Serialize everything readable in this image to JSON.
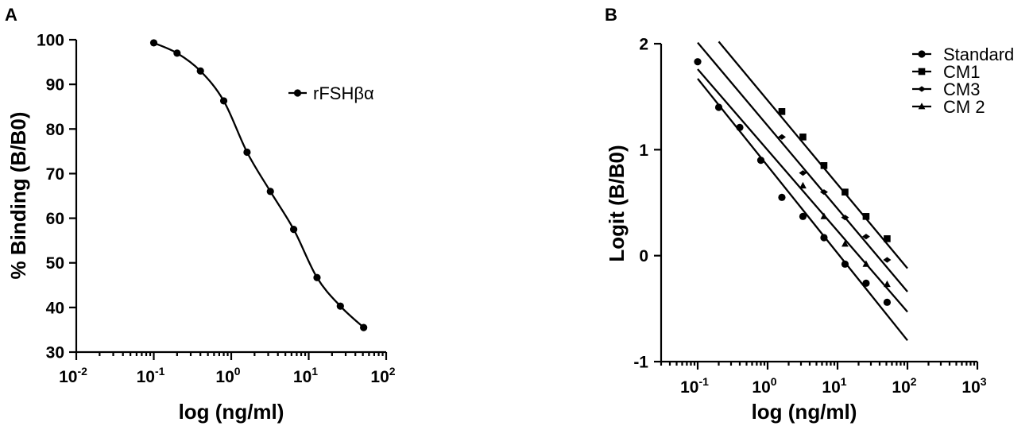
{
  "chart_data": [
    {
      "panel": "A",
      "type": "scatter",
      "xlabel": "log (ng/ml)",
      "ylabel": "% Binding (B/B0)",
      "xscale": "log",
      "xlim": [
        0.01,
        100
      ],
      "ylim": [
        30,
        100
      ],
      "x_ticks": [
        {
          "base": "10",
          "exp": "-2",
          "value": 0.01
        },
        {
          "base": "10",
          "exp": "-1",
          "value": 0.1
        },
        {
          "base": "10",
          "exp": "0",
          "value": 1
        },
        {
          "base": "10",
          "exp": "1",
          "value": 10
        },
        {
          "base": "10",
          "exp": "2",
          "value": 100
        }
      ],
      "y_ticks": [
        "30",
        "40",
        "50",
        "60",
        "70",
        "80",
        "90",
        "100"
      ],
      "legend_position": "top-right",
      "series": [
        {
          "name": "rFSHβα",
          "marker": "circle",
          "fit": "sigmoid",
          "x": [
            0.1,
            0.2,
            0.4,
            0.8,
            1.6,
            3.2,
            6.4,
            12.8,
            25.6,
            51.2
          ],
          "y": [
            99.3,
            97.0,
            93.0,
            86.3,
            74.8,
            66.0,
            57.5,
            46.7,
            40.3,
            35.5
          ]
        }
      ]
    },
    {
      "panel": "B",
      "type": "scatter",
      "xlabel": "log (ng/ml)",
      "ylabel": "Logit (B/B0)",
      "xscale": "log",
      "xlim": [
        0.03,
        1000
      ],
      "ylim": [
        -1,
        2
      ],
      "x_ticks": [
        {
          "base": "10",
          "exp": "-1",
          "value": 0.1
        },
        {
          "base": "10",
          "exp": "0",
          "value": 1
        },
        {
          "base": "10",
          "exp": "1",
          "value": 10
        },
        {
          "base": "10",
          "exp": "2",
          "value": 100
        },
        {
          "base": "10",
          "exp": "3",
          "value": 1000
        }
      ],
      "y_ticks": [
        "-1",
        "0",
        "1",
        "2"
      ],
      "legend_position": "top-right",
      "series": [
        {
          "name": "Standard",
          "marker": "circle",
          "x": [
            0.1,
            0.2,
            0.4,
            0.8,
            1.6,
            3.2,
            6.4,
            12.8,
            25.6,
            51.2
          ],
          "y": [
            1.83,
            1.4,
            1.21,
            0.9,
            0.55,
            0.37,
            0.17,
            -0.08,
            -0.26,
            -0.44
          ],
          "line_x": [
            0.1,
            100
          ],
          "line_y": [
            1.67,
            -0.8
          ]
        },
        {
          "name": "CM1",
          "marker": "square",
          "x": [
            1.6,
            3.2,
            6.4,
            12.8,
            25.6,
            51.2
          ],
          "y": [
            1.36,
            1.12,
            0.85,
            0.6,
            0.37,
            0.16
          ],
          "line_x": [
            0.2,
            100
          ],
          "line_y": [
            2.02,
            -0.12
          ]
        },
        {
          "name": "CM3",
          "marker": "diamond",
          "x": [
            1.6,
            3.2,
            6.4,
            12.8,
            25.6,
            51.2
          ],
          "y": [
            1.12,
            0.78,
            0.6,
            0.36,
            0.18,
            -0.04
          ],
          "line_x": [
            0.1,
            100
          ],
          "line_y": [
            2.01,
            -0.34
          ]
        },
        {
          "name": "CM 2",
          "marker": "triangle",
          "x": [
            3.2,
            6.4,
            12.8,
            25.6,
            51.2
          ],
          "y": [
            0.66,
            0.37,
            0.11,
            -0.08,
            -0.27
          ],
          "line_x": [
            0.1,
            100
          ],
          "line_y": [
            1.76,
            -0.53
          ]
        }
      ]
    }
  ]
}
